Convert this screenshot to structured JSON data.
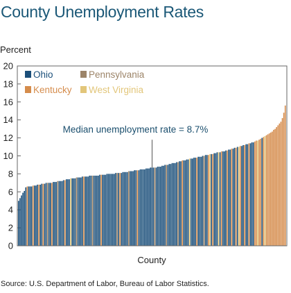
{
  "header": {
    "title": "County Unemployment Rates",
    "ylabel": "Percent"
  },
  "footer": {
    "source": "Source: U.S. Department of Labor, Bureau of Labor Statistics."
  },
  "colors": {
    "Ohio": "#1b4f7a",
    "Kentucky": "#d58c4c",
    "Pennsylvania": "#9c8468",
    "West Virginia": "#e2c67a"
  },
  "chart_data": {
    "type": "bar",
    "title": "County Unemployment Rates",
    "xlabel": "County",
    "ylabel": "Percent",
    "ylim": [
      0,
      20
    ],
    "yticks": [
      0,
      2,
      4,
      6,
      8,
      10,
      12,
      14,
      16,
      18,
      20
    ],
    "grid": false,
    "legend": {
      "placement": "top-left",
      "entries": [
        "Ohio",
        "Pennsylvania",
        "Kentucky",
        "West Virginia"
      ]
    },
    "annotation": {
      "text": "Median unemployment rate = 8.7%",
      "value": 8.7
    },
    "series_order": [
      "Ohio",
      "Kentucky",
      "Pennsylvania",
      "West Virginia"
    ],
    "values": [
      5.0,
      5.3,
      5.6,
      5.9,
      6.1,
      6.5,
      6.6,
      6.6,
      6.6,
      6.6,
      6.7,
      6.7,
      6.7,
      6.8,
      6.8,
      6.8,
      6.9,
      6.9,
      6.9,
      7.0,
      7.0,
      7.0,
      7.0,
      7.0,
      7.1,
      7.1,
      7.1,
      7.2,
      7.2,
      7.2,
      7.2,
      7.3,
      7.3,
      7.4,
      7.4,
      7.4,
      7.5,
      7.5,
      7.5,
      7.5,
      7.6,
      7.6,
      7.6,
      7.6,
      7.7,
      7.7,
      7.7,
      7.7,
      7.7,
      7.8,
      7.8,
      7.8,
      7.8,
      7.8,
      7.8,
      7.8,
      7.9,
      7.9,
      7.9,
      7.9,
      7.9,
      8.0,
      8.0,
      8.0,
      8.0,
      8.0,
      8.0,
      8.1,
      8.1,
      8.1,
      8.1,
      8.1,
      8.2,
      8.2,
      8.2,
      8.2,
      8.3,
      8.3,
      8.3,
      8.3,
      8.4,
      8.4,
      8.4,
      8.4,
      8.5,
      8.5,
      8.5,
      8.5,
      8.6,
      8.6,
      8.6,
      8.7,
      8.7,
      8.7,
      8.7,
      8.7,
      8.8,
      8.8,
      8.8,
      8.9,
      8.9,
      9.0,
      9.0,
      9.0,
      9.1,
      9.1,
      9.2,
      9.2,
      9.2,
      9.3,
      9.3,
      9.4,
      9.4,
      9.5,
      9.5,
      9.5,
      9.6,
      9.6,
      9.7,
      9.7,
      9.7,
      9.8,
      9.8,
      9.8,
      9.9,
      9.9,
      9.9,
      10.0,
      10.0,
      10.1,
      10.1,
      10.1,
      10.2,
      10.2,
      10.2,
      10.3,
      10.3,
      10.4,
      10.4,
      10.4,
      10.5,
      10.5,
      10.5,
      10.6,
      10.6,
      10.7,
      10.7,
      10.8,
      10.8,
      10.9,
      10.9,
      11.0,
      11.0,
      11.1,
      11.1,
      11.2,
      11.2,
      11.3,
      11.3,
      11.4,
      11.4,
      11.5,
      11.5,
      11.6,
      11.7,
      11.7,
      11.8,
      11.9,
      12.0,
      12.1,
      12.2,
      12.3,
      12.4,
      12.5,
      12.6,
      12.7,
      12.9,
      13.0,
      13.2,
      13.4,
      13.6,
      13.8,
      14.2,
      14.8,
      15.6
    ],
    "states": [
      "O",
      "O",
      "O",
      "O",
      "O",
      "O",
      "K",
      "O",
      "O",
      "O",
      "K",
      "O",
      "O",
      "O",
      "K",
      "O",
      "O",
      "K",
      "O",
      "O",
      "P",
      "O",
      "O",
      "K",
      "O",
      "O",
      "O",
      "P",
      "O",
      "O",
      "O",
      "O",
      "K",
      "O",
      "O",
      "O",
      "W",
      "O",
      "O",
      "O",
      "P",
      "O",
      "O",
      "O",
      "O",
      "K",
      "O",
      "O",
      "O",
      "O",
      "O",
      "P",
      "O",
      "O",
      "O",
      "O",
      "O",
      "K",
      "O",
      "O",
      "O",
      "O",
      "O",
      "O",
      "O",
      "O",
      "O",
      "O",
      "P",
      "O",
      "K",
      "O",
      "O",
      "O",
      "O",
      "O",
      "P",
      "O",
      "O",
      "O",
      "O",
      "O",
      "K",
      "O",
      "O",
      "O",
      "O",
      "O",
      "O",
      "O",
      "O",
      "O",
      "O",
      "O",
      "P",
      "O",
      "O",
      "O",
      "O",
      "O",
      "O",
      "O",
      "P",
      "O",
      "O",
      "O",
      "O",
      "O",
      "O",
      "O",
      "P",
      "O",
      "O",
      "K",
      "O",
      "O",
      "O",
      "O",
      "W",
      "O",
      "O",
      "O",
      "O",
      "K",
      "O",
      "O",
      "O",
      "O",
      "P",
      "O",
      "O",
      "K",
      "W",
      "O",
      "K",
      "O",
      "O",
      "O",
      "W",
      "O",
      "K",
      "O",
      "O",
      "O",
      "K",
      "O",
      "O",
      "K",
      "O",
      "O",
      "K",
      "O",
      "W",
      "K",
      "O",
      "O",
      "K",
      "O",
      "O",
      "K",
      "O",
      "O",
      "O",
      "K",
      "K",
      "W",
      "K",
      "K",
      "O",
      "K",
      "W",
      "K",
      "K",
      "K",
      "K",
      "K",
      "K",
      "K",
      "K",
      "K",
      "K",
      "K",
      "K",
      "K",
      "K"
    ]
  }
}
